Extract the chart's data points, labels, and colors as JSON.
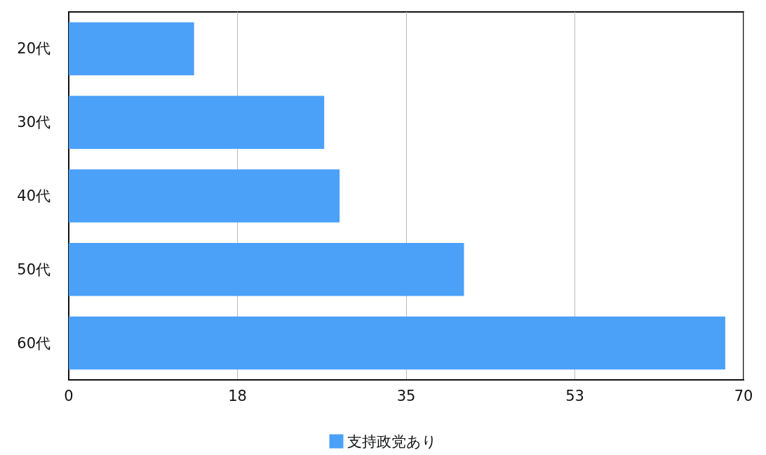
{
  "chart_data": {
    "type": "bar",
    "orientation": "horizontal",
    "categories": [
      "20代",
      "30代",
      "40代",
      "50代",
      "60代"
    ],
    "series": [
      {
        "name": "支持政党あり",
        "color": "#4ba0f8",
        "values": [
          13,
          26.5,
          28.1,
          41,
          68.1
        ]
      }
    ],
    "xlim": [
      0,
      70
    ],
    "xticks": [
      0,
      {
        "value": 17.5,
        "label": "18"
      },
      35,
      {
        "value": 52.5,
        "label": "53"
      },
      70
    ],
    "grid": "x",
    "legend": "bottom"
  }
}
